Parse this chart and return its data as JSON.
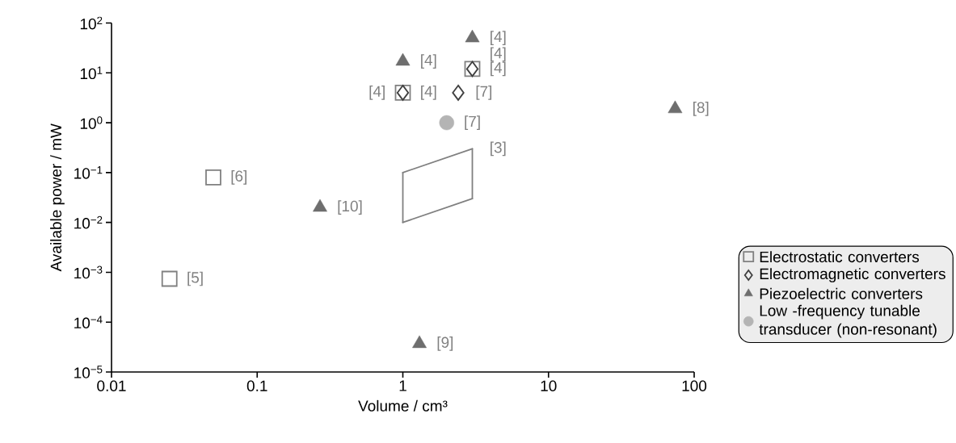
{
  "chart_data": {
    "type": "scatter",
    "xlabel": "Volume / cm³",
    "ylabel": "Available power / mW",
    "log": "xy",
    "xlim": [
      0.01,
      100
    ],
    "ylim": [
      1e-05,
      100
    ],
    "xticks": [
      0.01,
      0.1,
      1,
      10,
      100
    ],
    "yticks": [
      {
        "value": 1e-05,
        "label": "10$^{−5}$"
      },
      {
        "value": 0.0001,
        "label": "10$^{−4}$"
      },
      {
        "value": 0.001,
        "label": "10$^{−3}$"
      },
      {
        "value": 0.01,
        "label": "10$^{−2}$"
      },
      {
        "value": 0.1,
        "label": "10$^{−1}$"
      },
      {
        "value": 1,
        "label": "10$^{0}$"
      },
      {
        "value": 10,
        "label": "10$^{1}$"
      },
      {
        "value": 100,
        "label": "10$^{2}$"
      }
    ],
    "legend": "bottom right",
    "series": [
      {
        "name": "Electrostatic converters",
        "color": "#808080",
        "marker": "square",
        "x": [
          0.05,
          0.025,
          1,
          3
        ],
        "values": [
          0.08,
          0.00074,
          4,
          12
        ]
      },
      {
        "name": "Electromagnetic converters",
        "color": "#404040",
        "marker": "diamond",
        "x": [
          1,
          3,
          2.4
        ],
        "values": [
          4,
          12,
          4
        ]
      },
      {
        "name": "Piezoelectric converters",
        "color": "#6e6e6e",
        "marker": "triangle",
        "x": [
          1,
          3,
          74,
          0.27,
          1.3
        ],
        "values": [
          17,
          50,
          1.9,
          0.02,
          3.7e-05
        ]
      },
      {
        "name": "Low -frequency tunable transducer (non-resonant)",
        "color": "#b4b4b4",
        "marker": "circle",
        "x": [
          2
        ],
        "values": [
          1
        ]
      },
      {
        "type": "line",
        "color": "#808080",
        "marker": "none",
        "x": [
          1,
          3
        ],
        "values": [
          0.1,
          0.3
        ]
      },
      {
        "type": "line",
        "color": "#808080",
        "marker": "none",
        "x": [
          1,
          3
        ],
        "values": [
          0.01,
          0.03
        ]
      },
      {
        "type": "line",
        "color": "#808080",
        "marker": "none",
        "x": [
          1,
          1
        ],
        "values": [
          0.01,
          0.1
        ]
      },
      {
        "type": "line",
        "color": "#808080",
        "marker": "none",
        "x": [
          3,
          3
        ],
        "values": [
          0.03,
          0.3
        ]
      }
    ],
    "annotations": [
      {
        "text": "[6]",
        "x": 0.05,
        "y": 0.08
      },
      {
        "text": "[5]",
        "x": 0.025,
        "y": 0.00074
      },
      {
        "text": "[9]",
        "x": 1.3,
        "y": 3.7e-05
      },
      {
        "text": "[10]",
        "x": 0.27,
        "y": 0.02
      },
      {
        "text": "[3]",
        "x": 3,
        "y": 0.3
      },
      {
        "text": "[4]",
        "x": 1,
        "y": 4
      },
      {
        "text": "[4]",
        "x": 1,
        "y": 4
      },
      {
        "text": "[4]",
        "x": 1,
        "y": 17
      },
      {
        "text": "[4]",
        "x": 3,
        "y": 12
      },
      {
        "text": "[4]",
        "x": 3,
        "y": 12
      },
      {
        "text": "[4]",
        "x": 3,
        "y": 50
      },
      {
        "text": "[7]",
        "x": 2.4,
        "y": 4
      },
      {
        "text": "[7]",
        "x": 2,
        "y": 1
      },
      {
        "text": "[8]",
        "x": 74,
        "y": 1.9
      }
    ]
  }
}
